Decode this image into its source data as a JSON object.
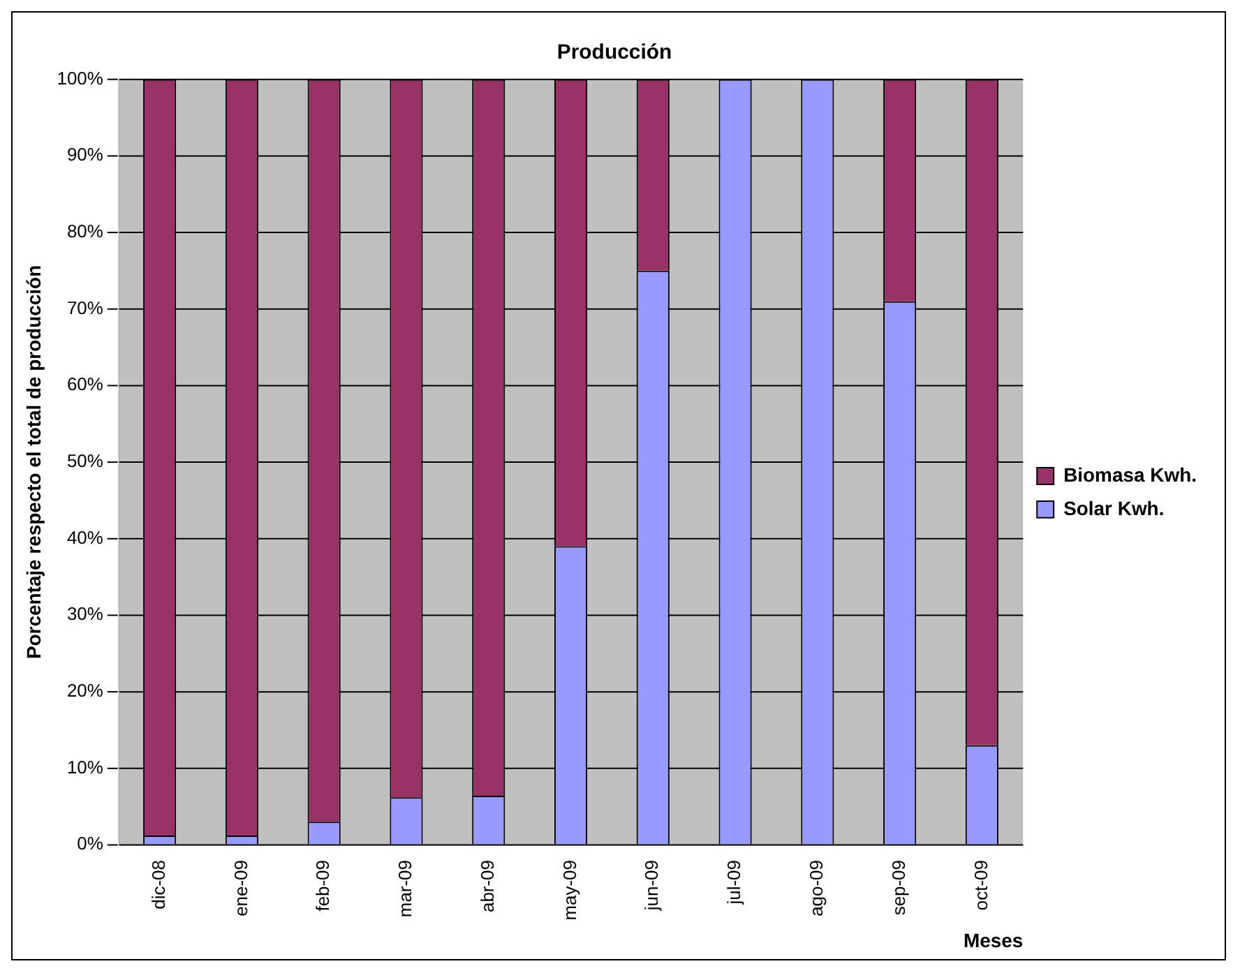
{
  "chart_data": {
    "type": "bar",
    "title": "Producción",
    "ylabel": "Porcentaje respecto el total de producción",
    "xlabel": "Meses",
    "categories": [
      "dic-08",
      "ene-09",
      "feb-09",
      "mar-09",
      "abr-09",
      "may-09",
      "jun-09",
      "jul-09",
      "ago-09",
      "sep-09",
      "oct-09"
    ],
    "stacked": true,
    "series": [
      {
        "name": "Solar Kwh.",
        "color": "#9999ff",
        "values": [
          1.2,
          1.2,
          3,
          6.2,
          6.4,
          39,
          75,
          100,
          100,
          71,
          13
        ]
      },
      {
        "name": "Biomasa Kwh.",
        "color": "#993366",
        "values": [
          98.8,
          98.8,
          97,
          93.8,
          93.6,
          61,
          25,
          0,
          0,
          29,
          87
        ]
      }
    ],
    "ylim": [
      0,
      100
    ],
    "yticks": [
      {
        "value": 0,
        "label": "0%"
      },
      {
        "value": 10,
        "label": "10%"
      },
      {
        "value": 20,
        "label": "20%"
      },
      {
        "value": 30,
        "label": "30%"
      },
      {
        "value": 40,
        "label": "40%"
      },
      {
        "value": 50,
        "label": "50%"
      },
      {
        "value": 60,
        "label": "60%"
      },
      {
        "value": 70,
        "label": "70%"
      },
      {
        "value": 80,
        "label": "80%"
      },
      {
        "value": 90,
        "label": "90%"
      },
      {
        "value": 100,
        "label": "100%"
      }
    ],
    "grid": "y",
    "legend": "right"
  }
}
